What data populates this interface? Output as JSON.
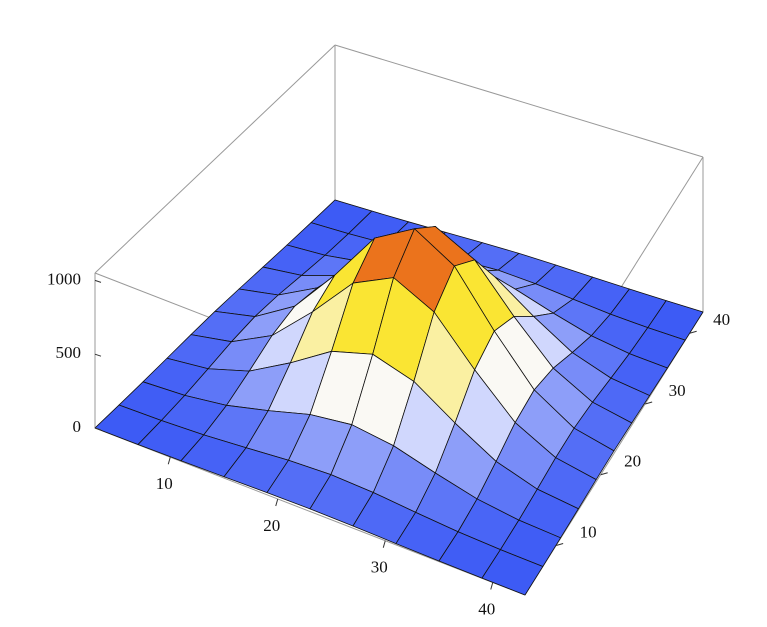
{
  "chart_data": {
    "type": "surface",
    "x": [
      3,
      7,
      11,
      15,
      19,
      23,
      27,
      31,
      35,
      39,
      43
    ],
    "y": [
      3,
      7,
      11,
      15,
      19,
      23,
      27,
      31,
      35,
      39,
      43
    ],
    "z": [
      [
        0,
        1,
        4,
        9,
        15,
        18,
        15,
        9,
        4,
        1,
        0
      ],
      [
        1,
        6,
        18,
        40,
        65,
        77,
        65,
        40,
        18,
        6,
        1
      ],
      [
        4,
        18,
        56,
        126,
        205,
        242,
        205,
        126,
        56,
        18,
        4
      ],
      [
        9,
        40,
        126,
        284,
        464,
        546,
        464,
        284,
        126,
        40,
        9
      ],
      [
        15,
        65,
        205,
        464,
        757,
        892,
        757,
        464,
        205,
        65,
        15
      ],
      [
        18,
        77,
        242,
        546,
        892,
        1050,
        892,
        546,
        242,
        77,
        18
      ],
      [
        15,
        65,
        205,
        464,
        757,
        892,
        757,
        464,
        205,
        65,
        15
      ],
      [
        9,
        40,
        126,
        284,
        464,
        546,
        464,
        284,
        126,
        40,
        9
      ],
      [
        4,
        18,
        56,
        126,
        205,
        242,
        205,
        126,
        56,
        18,
        4
      ],
      [
        1,
        6,
        18,
        40,
        65,
        77,
        65,
        40,
        18,
        6,
        1
      ],
      [
        0,
        1,
        4,
        9,
        15,
        18,
        15,
        9,
        4,
        1,
        0
      ]
    ],
    "xlim": [
      3,
      43
    ],
    "ylim": [
      3,
      43
    ],
    "zlim": [
      0,
      1050
    ],
    "xticks": [
      10,
      20,
      30,
      40
    ],
    "yticks": [
      10,
      20,
      30,
      40
    ],
    "zticks": [
      0,
      500,
      1000
    ],
    "mesh": true
  }
}
